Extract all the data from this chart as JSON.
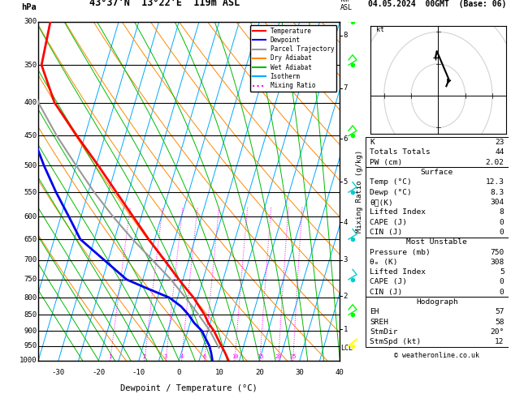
{
  "title_left": "43°37'N  13°22'E  119m ASL",
  "title_right": "04.05.2024  00GMT  (Base: 06)",
  "xlabel": "Dewpoint / Temperature (°C)",
  "ylabel_left": "hPa",
  "copyright": "© weatheronline.co.uk",
  "pressure_levels": [
    300,
    350,
    400,
    450,
    500,
    550,
    600,
    650,
    700,
    750,
    800,
    850,
    900,
    950,
    1000
  ],
  "pressure_ticks": [
    300,
    350,
    400,
    450,
    500,
    550,
    600,
    650,
    700,
    750,
    800,
    850,
    900,
    950,
    1000
  ],
  "xlim": [
    -35,
    40
  ],
  "km_ticks": [
    1,
    2,
    3,
    4,
    5,
    6,
    7,
    8
  ],
  "km_pressures": [
    895,
    795,
    700,
    612,
    530,
    455,
    380,
    315
  ],
  "mixing_ratio_values": [
    1,
    2,
    3,
    4,
    6,
    10,
    15,
    20,
    25
  ],
  "lcl_pressure": 956,
  "temp_profile": {
    "pressure": [
      1000,
      975,
      950,
      925,
      900,
      875,
      850,
      825,
      800,
      775,
      750,
      700,
      650,
      600,
      550,
      500,
      450,
      400,
      350,
      300
    ],
    "temp": [
      12.3,
      11.0,
      9.5,
      8.0,
      6.5,
      4.5,
      3.0,
      1.0,
      -1.0,
      -3.5,
      -6.0,
      -11.0,
      -16.5,
      -22.0,
      -28.0,
      -34.5,
      -42.0,
      -50.0,
      -56.0,
      -57.0
    ],
    "color": "#FF0000",
    "linewidth": 2.0
  },
  "dewpoint_profile": {
    "pressure": [
      1000,
      975,
      950,
      925,
      900,
      875,
      850,
      825,
      800,
      775,
      750,
      700,
      650,
      600,
      550,
      500,
      450,
      400,
      350,
      300
    ],
    "temp": [
      8.3,
      7.5,
      6.5,
      5.0,
      3.5,
      1.0,
      -1.0,
      -3.5,
      -7.0,
      -13.0,
      -19.0,
      -26.0,
      -33.5,
      -38.0,
      -43.0,
      -48.0,
      -53.0,
      -58.0,
      -60.0,
      -61.0
    ],
    "color": "#0000EE",
    "linewidth": 2.0
  },
  "parcel_profile": {
    "pressure": [
      956,
      900,
      850,
      800,
      750,
      700,
      650,
      600,
      550,
      500,
      450,
      400,
      350,
      300
    ],
    "temp": [
      9.0,
      5.5,
      1.5,
      -3.0,
      -8.0,
      -14.0,
      -20.5,
      -27.0,
      -33.5,
      -40.0,
      -47.0,
      -54.0,
      -59.5,
      -63.0
    ],
    "color": "#999999",
    "linewidth": 1.5
  },
  "isotherm_color": "#00AAFF",
  "isotherm_temps": [
    -40,
    -35,
    -30,
    -25,
    -20,
    -15,
    -10,
    -5,
    0,
    5,
    10,
    15,
    20,
    25,
    30,
    35,
    40
  ],
  "isotherm_linewidth": 0.7,
  "dry_adiabat_color": "#FF8800",
  "dry_adiabat_linewidth": 0.7,
  "wet_adiabat_color": "#00BB00",
  "wet_adiabat_linewidth": 0.7,
  "mixing_ratio_color": "#FF00FF",
  "mixing_ratio_linewidth": 0.7,
  "legend_items": [
    {
      "label": "Temperature",
      "color": "#FF0000",
      "ls": "solid"
    },
    {
      "label": "Dewpoint",
      "color": "#0000EE",
      "ls": "solid"
    },
    {
      "label": "Parcel Trajectory",
      "color": "#999999",
      "ls": "solid"
    },
    {
      "label": "Dry Adiabat",
      "color": "#FF8800",
      "ls": "solid"
    },
    {
      "label": "Wet Adiabat",
      "color": "#00BB00",
      "ls": "solid"
    },
    {
      "label": "Isotherm",
      "color": "#00AAFF",
      "ls": "solid"
    },
    {
      "label": "Mixing Ratio",
      "color": "#FF00FF",
      "ls": "dotted"
    }
  ],
  "table_K": "23",
  "table_TT": "44",
  "table_PW": "2.02",
  "table_surf_temp": "12.3",
  "table_surf_dewp": "8.3",
  "table_surf_the": "304",
  "table_surf_li": "8",
  "table_surf_cape": "0",
  "table_surf_cin": "0",
  "table_mu_pres": "750",
  "table_mu_the": "308",
  "table_mu_li": "5",
  "table_mu_cape": "0",
  "table_mu_cin": "0",
  "table_hodo_eh": "57",
  "table_hodo_sreh": "58",
  "table_hodo_stmdir": "20°",
  "table_hodo_stmspd": "12",
  "wind_barb_pressures": [
    300,
    350,
    450,
    550,
    650,
    750,
    850,
    950
  ],
  "wind_barb_colors": [
    "#00FF00",
    "#00FF00",
    "#00FF00",
    "#00CCCC",
    "#00CCCC",
    "#00CCCC",
    "#00FF00",
    "#FFFF00"
  ]
}
